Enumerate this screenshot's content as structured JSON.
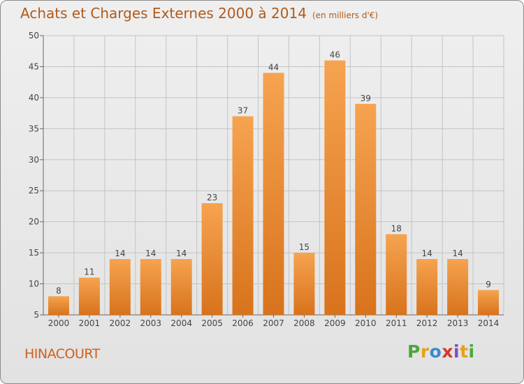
{
  "header": {
    "title": "Achats et Charges Externes 2000 à 2014",
    "subtitle": "(en milliers d'€)"
  },
  "footer": {
    "commune": "HINACOURT",
    "brand": "Proxiti"
  },
  "colors": {
    "bar_top": "#f6a350",
    "bar_bottom": "#d8731c",
    "title": "#b05a1a",
    "commune": "#d0601c"
  },
  "chart_data": {
    "type": "bar",
    "categories": [
      "2000",
      "2001",
      "2002",
      "2003",
      "2004",
      "2005",
      "2006",
      "2007",
      "2008",
      "2009",
      "2010",
      "2011",
      "2012",
      "2013",
      "2014"
    ],
    "values": [
      8,
      11,
      14,
      14,
      14,
      23,
      37,
      44,
      15,
      46,
      39,
      18,
      14,
      14,
      9
    ],
    "ylim": [
      5,
      50
    ],
    "yticks": [
      5,
      10,
      15,
      20,
      25,
      30,
      35,
      40,
      45,
      50
    ],
    "grid": true,
    "legend": "none"
  }
}
